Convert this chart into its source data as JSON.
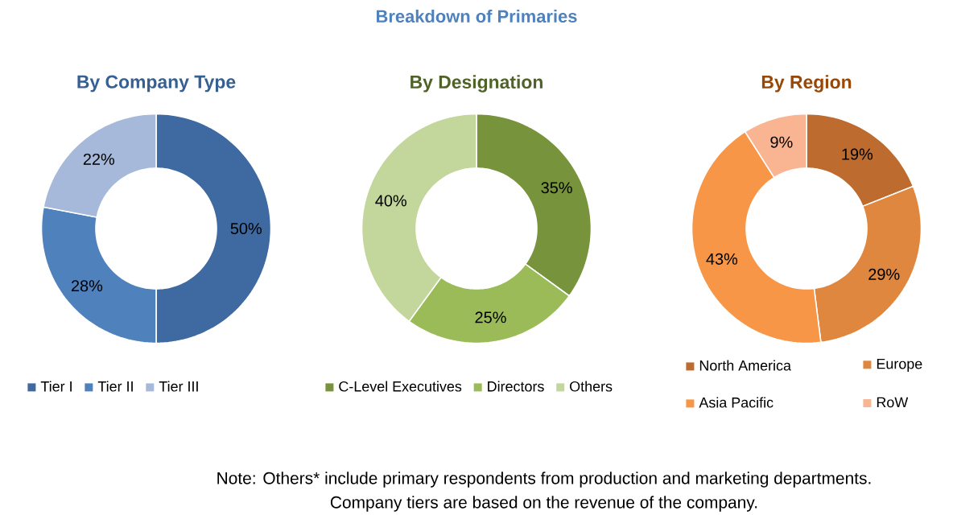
{
  "chart_data": [
    {
      "type": "other",
      "title": "Breakdown of Primaries",
      "annotations": [
        "Note: Others* include primary respondents from production and marketing departments.",
        "Company tiers are based on the revenue of the company."
      ]
    },
    {
      "type": "donut",
      "title": "By Company Type",
      "categories": [
        "Tier I",
        "Tier II",
        "Tier III"
      ],
      "values": [
        50,
        28,
        22
      ],
      "value_labels": [
        "50%",
        "28%",
        "22%"
      ],
      "colors": [
        "#3f6aa1",
        "#4f81bd",
        "#a7b9da"
      ],
      "legend": "bottom"
    },
    {
      "type": "donut",
      "title": "By Designation",
      "categories": [
        "C-Level Executives",
        "Directors",
        "Others"
      ],
      "values": [
        35,
        25,
        40
      ],
      "value_labels": [
        "35%",
        "25%",
        "40%"
      ],
      "colors": [
        "#77933c",
        "#9bbb59",
        "#c3d69b"
      ],
      "legend": "bottom"
    },
    {
      "type": "donut",
      "title": "By Region",
      "categories": [
        "North America",
        "Europe",
        "Asia Pacific",
        "RoW"
      ],
      "values": [
        19,
        29,
        43,
        9
      ],
      "value_labels": [
        "19%",
        "29%",
        "43%",
        "9%"
      ],
      "colors": [
        "#bd6b2e",
        "#e0873f",
        "#f79646",
        "#f9b491"
      ],
      "legend": "bottom"
    }
  ]
}
